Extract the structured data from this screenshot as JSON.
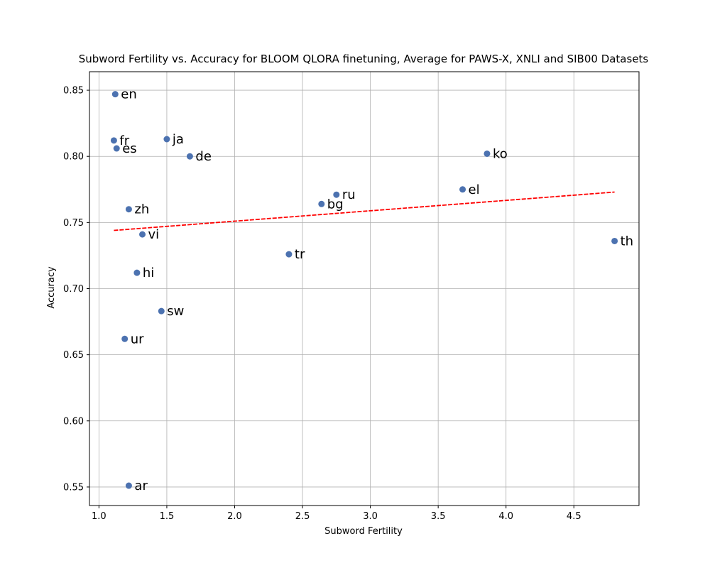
{
  "chart_data": {
    "type": "scatter",
    "title": "Subword Fertility vs. Accuracy for BLOOM QLORA finetuning, Average for PAWS-X, XNLI and SIB00 Datasets",
    "xlabel": "Subword Fertility",
    "ylabel": "Accuracy",
    "xlim": [
      0.93,
      4.98
    ],
    "ylim": [
      0.536,
      0.864
    ],
    "xticks": [
      1.0,
      1.5,
      2.0,
      2.5,
      3.0,
      3.5,
      4.0,
      4.5
    ],
    "xtick_labels": [
      "1.0",
      "1.5",
      "2.0",
      "2.5",
      "3.0",
      "3.5",
      "4.0",
      "4.5"
    ],
    "yticks": [
      0.55,
      0.6,
      0.65,
      0.7,
      0.75,
      0.8,
      0.85
    ],
    "ytick_labels": [
      "0.55",
      "0.60",
      "0.65",
      "0.70",
      "0.75",
      "0.80",
      "0.85"
    ],
    "grid": true,
    "marker_color": "#4c72b0",
    "trend_color": "#ff0000",
    "points": [
      {
        "label": "en",
        "x": 1.12,
        "y": 0.847
      },
      {
        "label": "fr",
        "x": 1.11,
        "y": 0.812
      },
      {
        "label": "es",
        "x": 1.13,
        "y": 0.806
      },
      {
        "label": "ja",
        "x": 1.5,
        "y": 0.813
      },
      {
        "label": "de",
        "x": 1.67,
        "y": 0.8
      },
      {
        "label": "zh",
        "x": 1.22,
        "y": 0.76
      },
      {
        "label": "vi",
        "x": 1.32,
        "y": 0.741
      },
      {
        "label": "hi",
        "x": 1.28,
        "y": 0.712
      },
      {
        "label": "sw",
        "x": 1.46,
        "y": 0.683
      },
      {
        "label": "ur",
        "x": 1.19,
        "y": 0.662
      },
      {
        "label": "ar",
        "x": 1.22,
        "y": 0.551
      },
      {
        "label": "tr",
        "x": 2.4,
        "y": 0.726
      },
      {
        "label": "bg",
        "x": 2.64,
        "y": 0.764
      },
      {
        "label": "ru",
        "x": 2.75,
        "y": 0.771
      },
      {
        "label": "el",
        "x": 3.68,
        "y": 0.775
      },
      {
        "label": "ko",
        "x": 3.86,
        "y": 0.802
      },
      {
        "label": "th",
        "x": 4.8,
        "y": 0.736
      }
    ],
    "trendline": {
      "x": [
        1.11,
        4.8
      ],
      "y": [
        0.744,
        0.773
      ],
      "style": "dashed"
    }
  }
}
